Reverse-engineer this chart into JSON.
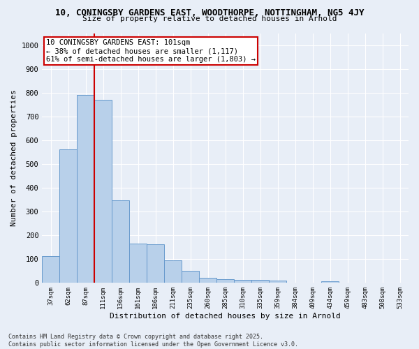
{
  "title_line1": "10, CONINGSBY GARDENS EAST, WOODTHORPE, NOTTINGHAM, NG5 4JY",
  "title_line2": "Size of property relative to detached houses in Arnold",
  "xlabel": "Distribution of detached houses by size in Arnold",
  "ylabel": "Number of detached properties",
  "categories": [
    "37sqm",
    "62sqm",
    "87sqm",
    "111sqm",
    "136sqm",
    "161sqm",
    "186sqm",
    "211sqm",
    "235sqm",
    "260sqm",
    "285sqm",
    "310sqm",
    "335sqm",
    "359sqm",
    "384sqm",
    "409sqm",
    "434sqm",
    "459sqm",
    "483sqm",
    "508sqm",
    "533sqm"
  ],
  "values": [
    112,
    560,
    790,
    770,
    345,
    165,
    160,
    95,
    50,
    20,
    13,
    10,
    10,
    8,
    0,
    0,
    5,
    0,
    0,
    0,
    0
  ],
  "bar_color": "#b8d0ea",
  "bar_edge_color": "#6699cc",
  "annotation_box_color": "#cc0000",
  "vline_x": 2.5,
  "vline_color": "#cc0000",
  "annotation_text": "10 CONINGSBY GARDENS EAST: 101sqm\n← 38% of detached houses are smaller (1,117)\n61% of semi-detached houses are larger (1,803) →",
  "ylim": [
    0,
    1050
  ],
  "yticks": [
    0,
    100,
    200,
    300,
    400,
    500,
    600,
    700,
    800,
    900,
    1000
  ],
  "background_color": "#e8eef7",
  "grid_color": "#ffffff",
  "footer_line1": "Contains HM Land Registry data © Crown copyright and database right 2025.",
  "footer_line2": "Contains public sector information licensed under the Open Government Licence v3.0."
}
